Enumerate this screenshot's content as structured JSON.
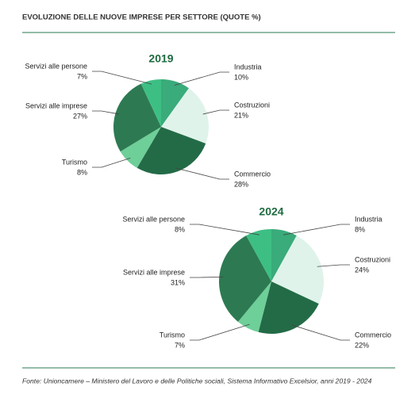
{
  "title": "EVOLUZIONE DELLE NUOVE IMPRESE PER SETTORE (QUOTE %)",
  "source": "Fonte: Unioncamere – Ministero del Lavoro e delle Politiche sociali, Sistema Informativo Excelsior, anni 2019 - 2024",
  "chart_data": [
    {
      "type": "pie",
      "title": "2019",
      "categories": [
        "Industria",
        "Costruzioni",
        "Commercio",
        "Turismo",
        "Servizi alle imprese",
        "Servizi alle persone"
      ],
      "values": [
        10,
        21,
        28,
        8,
        27,
        7
      ],
      "value_labels": [
        "10%",
        "21%",
        "28%",
        "8%",
        "27%",
        "7%"
      ],
      "colors": [
        "#3aab7b",
        "#dff3ea",
        "#236b47",
        "#6ecf98",
        "#2d7a52",
        "#3dbf84"
      ]
    },
    {
      "type": "pie",
      "title": "2024",
      "categories": [
        "Industria",
        "Costruzioni",
        "Commercio",
        "Turismo",
        "Servizi alle imprese",
        "Servizi alle persone"
      ],
      "values": [
        8,
        24,
        22,
        7,
        31,
        8
      ],
      "value_labels": [
        "8%",
        "24%",
        "22%",
        "7%",
        "31%",
        "8%"
      ],
      "colors": [
        "#3aab7b",
        "#dff3ea",
        "#236b47",
        "#6ecf98",
        "#2d7a52",
        "#3dbf84"
      ]
    }
  ]
}
